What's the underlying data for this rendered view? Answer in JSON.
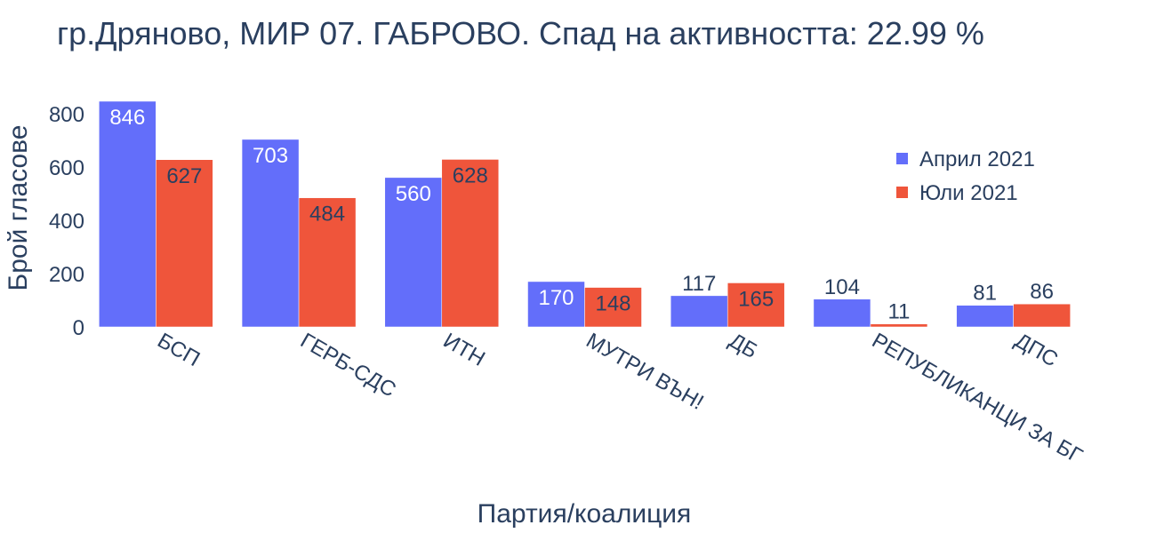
{
  "chart_data": {
    "type": "bar",
    "title": "гр.Дряново, МИР 07. ГАБРОВО. Спад на активността: 22.99 %",
    "xlabel": "Партия/коалиция",
    "ylabel": "Брой гласове",
    "categories": [
      "БСП",
      "ГЕРБ-СДС",
      "ИТН",
      "МУТРИ ВЪН!",
      "ДБ",
      "РЕПУБЛИКАНЦИ ЗА БГ",
      "ДПС"
    ],
    "series": [
      {
        "name": "Април 2021",
        "color": "#636efa",
        "values": [
          846,
          703,
          560,
          170,
          117,
          104,
          81
        ]
      },
      {
        "name": "Юли 2021",
        "color": "#ef553b",
        "values": [
          627,
          484,
          628,
          148,
          165,
          11,
          86
        ]
      }
    ],
    "ylim": [
      0,
      846
    ],
    "yticks": [
      0,
      200,
      400,
      600,
      800
    ],
    "grid": false,
    "legend_position": "top-right"
  }
}
